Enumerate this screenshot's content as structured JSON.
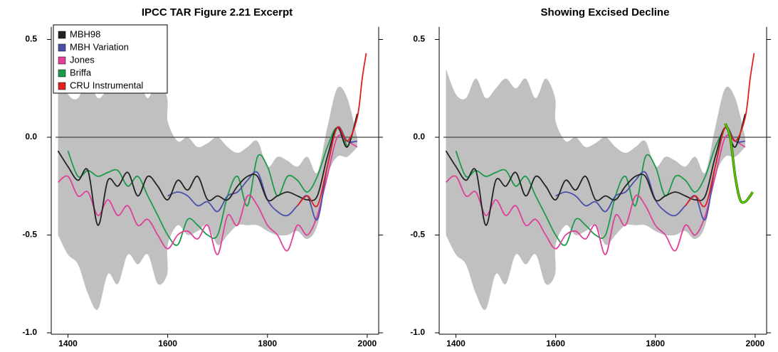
{
  "chart_data": [
    {
      "type": "line",
      "title": "IPCC TAR Figure 2.21 Excerpt",
      "xlim": [
        1375,
        2023
      ],
      "ylim": [
        -1.0,
        0.55
      ],
      "xticks": [
        1400,
        1600,
        1800,
        2000
      ],
      "yticks": [
        {
          "value": -1.0,
          "label": "-1.0"
        },
        {
          "value": -0.5,
          "label": "-0.5"
        },
        {
          "value": 0.0,
          "label": "0.0"
        },
        {
          "value": 0.5,
          "label": "0.5"
        }
      ],
      "reference_line": 0,
      "legend": "upper left",
      "band": {
        "color": "#c0c0c0",
        "x": [
          1380,
          1400,
          1420,
          1440,
          1460,
          1480,
          1500,
          1520,
          1540,
          1560,
          1580,
          1599,
          1600,
          1620,
          1640,
          1660,
          1680,
          1700,
          1720,
          1740,
          1760,
          1780,
          1800,
          1820,
          1840,
          1860,
          1880,
          1900,
          1920,
          1940,
          1960,
          1980
        ],
        "upper": [
          0.35,
          0.22,
          0.2,
          0.3,
          0.2,
          0.25,
          0.3,
          0.25,
          0.3,
          0.2,
          0.3,
          0.2,
          0.08,
          -0.02,
          0.0,
          -0.05,
          -0.03,
          0.0,
          -0.05,
          -0.08,
          -0.05,
          -0.02,
          -0.15,
          -0.1,
          -0.12,
          -0.15,
          -0.1,
          -0.18,
          0.05,
          0.25,
          0.2,
          0.0
        ],
        "lower": [
          -0.5,
          -0.6,
          -0.65,
          -0.8,
          -0.88,
          -0.7,
          -0.75,
          -0.6,
          -0.65,
          -0.6,
          -0.75,
          -0.7,
          -0.55,
          -0.45,
          -0.5,
          -0.48,
          -0.45,
          -0.55,
          -0.5,
          -0.45,
          -0.45,
          -0.45,
          -0.48,
          -0.5,
          -0.5,
          -0.48,
          -0.52,
          -0.45,
          -0.2,
          -0.1,
          -0.1,
          -0.05
        ]
      },
      "series": [
        {
          "name": "Briffa",
          "legend_order": 3,
          "color": "#1a9a4a",
          "x": [
            1400,
            1420,
            1440,
            1460,
            1480,
            1500,
            1520,
            1540,
            1560,
            1580,
            1600,
            1620,
            1640,
            1660,
            1680,
            1700,
            1720,
            1740,
            1760,
            1780,
            1800,
            1820,
            1840,
            1860,
            1880,
            1900,
            1920,
            1940,
            1960
          ],
          "values": [
            -0.07,
            -0.2,
            -0.17,
            -0.2,
            -0.18,
            -0.17,
            -0.25,
            -0.2,
            -0.3,
            -0.4,
            -0.5,
            -0.55,
            -0.42,
            -0.45,
            -0.5,
            -0.5,
            -0.3,
            -0.2,
            -0.35,
            -0.1,
            -0.15,
            -0.3,
            -0.2,
            -0.22,
            -0.28,
            -0.2,
            -0.05,
            0.05,
            -0.05
          ]
        },
        {
          "name": "Jones",
          "legend_order": 2,
          "color": "#e0409a",
          "x": [
            1380,
            1400,
            1420,
            1440,
            1460,
            1480,
            1500,
            1520,
            1540,
            1560,
            1580,
            1600,
            1620,
            1640,
            1660,
            1680,
            1700,
            1720,
            1740,
            1760,
            1780,
            1800,
            1820,
            1840,
            1860,
            1880,
            1900,
            1920,
            1940,
            1960,
            1980
          ],
          "values": [
            -0.23,
            -0.2,
            -0.3,
            -0.28,
            -0.4,
            -0.32,
            -0.4,
            -0.35,
            -0.45,
            -0.42,
            -0.5,
            -0.57,
            -0.5,
            -0.48,
            -0.52,
            -0.45,
            -0.6,
            -0.4,
            -0.45,
            -0.3,
            -0.35,
            -0.45,
            -0.5,
            -0.58,
            -0.45,
            -0.5,
            -0.4,
            -0.2,
            0.0,
            -0.02,
            -0.05
          ]
        },
        {
          "name": "MBH Variation",
          "legend_order": 1,
          "color": "#4a50a8",
          "x": [
            1600,
            1620,
            1640,
            1660,
            1680,
            1700,
            1720,
            1740,
            1760,
            1780,
            1800,
            1820,
            1840,
            1860,
            1880,
            1900,
            1920,
            1940,
            1960,
            1980
          ],
          "values": [
            -0.3,
            -0.28,
            -0.3,
            -0.35,
            -0.33,
            -0.38,
            -0.3,
            -0.28,
            -0.22,
            -0.18,
            -0.32,
            -0.38,
            -0.4,
            -0.35,
            -0.3,
            -0.42,
            -0.15,
            0.05,
            -0.02,
            -0.02
          ]
        },
        {
          "name": "MBH98",
          "legend_order": 0,
          "color": "#222222",
          "x": [
            1380,
            1400,
            1420,
            1440,
            1460,
            1480,
            1500,
            1520,
            1540,
            1560,
            1580,
            1600,
            1620,
            1640,
            1660,
            1680,
            1700,
            1720,
            1740,
            1760,
            1780,
            1800,
            1820,
            1840,
            1860,
            1880,
            1900,
            1920,
            1940,
            1960,
            1980
          ],
          "values": [
            -0.07,
            -0.15,
            -0.22,
            -0.17,
            -0.45,
            -0.22,
            -0.25,
            -0.18,
            -0.3,
            -0.2,
            -0.25,
            -0.32,
            -0.22,
            -0.27,
            -0.2,
            -0.32,
            -0.3,
            -0.32,
            -0.25,
            -0.2,
            -0.2,
            -0.32,
            -0.3,
            -0.28,
            -0.3,
            -0.32,
            -0.3,
            -0.1,
            0.05,
            -0.05,
            0.12
          ]
        },
        {
          "name": "CRU Instrumental",
          "legend_order": 4,
          "color": "#e02020",
          "x": [
            1860,
            1880,
            1900,
            1920,
            1940,
            1960,
            1980,
            1990,
            1998
          ],
          "values": [
            -0.35,
            -0.3,
            -0.35,
            -0.15,
            0.05,
            -0.02,
            0.1,
            0.3,
            0.43
          ]
        }
      ]
    },
    {
      "type": "line",
      "title": "Showing Excised Decline",
      "xlim": [
        1375,
        2023
      ],
      "ylim": [
        -1.0,
        0.55
      ],
      "xticks": [
        1400,
        1600,
        1800,
        2000
      ],
      "yticks": [
        {
          "value": -1.0,
          "label": "-1.0"
        },
        {
          "value": -0.5,
          "label": "-0.5"
        },
        {
          "value": 0.0,
          "label": "0.0"
        },
        {
          "value": 0.5,
          "label": "0.5"
        }
      ],
      "reference_line": 0,
      "band": {
        "color": "#c0c0c0",
        "x": [
          1380,
          1400,
          1420,
          1440,
          1460,
          1480,
          1500,
          1520,
          1540,
          1560,
          1580,
          1599,
          1600,
          1620,
          1640,
          1660,
          1680,
          1700,
          1720,
          1740,
          1760,
          1780,
          1800,
          1820,
          1840,
          1860,
          1880,
          1900,
          1920,
          1940,
          1960,
          1980
        ],
        "upper": [
          0.35,
          0.22,
          0.2,
          0.3,
          0.2,
          0.25,
          0.3,
          0.25,
          0.3,
          0.2,
          0.3,
          0.2,
          0.08,
          -0.02,
          0.0,
          -0.05,
          -0.03,
          0.0,
          -0.05,
          -0.08,
          -0.05,
          -0.02,
          -0.15,
          -0.1,
          -0.12,
          -0.15,
          -0.1,
          -0.18,
          0.05,
          0.25,
          0.2,
          0.0
        ],
        "lower": [
          -0.5,
          -0.6,
          -0.65,
          -0.8,
          -0.88,
          -0.7,
          -0.75,
          -0.6,
          -0.65,
          -0.6,
          -0.75,
          -0.7,
          -0.55,
          -0.45,
          -0.5,
          -0.48,
          -0.45,
          -0.55,
          -0.5,
          -0.45,
          -0.45,
          -0.45,
          -0.48,
          -0.5,
          -0.5,
          -0.48,
          -0.52,
          -0.45,
          -0.2,
          -0.1,
          -0.1,
          -0.05
        ]
      },
      "series": [
        {
          "color": "#1a9a4a",
          "x": [
            1400,
            1420,
            1440,
            1460,
            1480,
            1500,
            1520,
            1540,
            1560,
            1580,
            1600,
            1620,
            1640,
            1660,
            1680,
            1700,
            1720,
            1740,
            1760,
            1780,
            1800,
            1820,
            1840,
            1860,
            1880,
            1900,
            1920,
            1940
          ],
          "values": [
            -0.07,
            -0.2,
            -0.17,
            -0.2,
            -0.18,
            -0.17,
            -0.25,
            -0.2,
            -0.3,
            -0.4,
            -0.5,
            -0.55,
            -0.42,
            -0.45,
            -0.5,
            -0.5,
            -0.3,
            -0.2,
            -0.35,
            -0.1,
            -0.15,
            -0.3,
            -0.2,
            -0.22,
            -0.28,
            -0.2,
            -0.05,
            0.05
          ]
        },
        {
          "color": "#e0409a",
          "x": [
            1380,
            1400,
            1420,
            1440,
            1460,
            1480,
            1500,
            1520,
            1540,
            1560,
            1580,
            1600,
            1620,
            1640,
            1660,
            1680,
            1700,
            1720,
            1740,
            1760,
            1780,
            1800,
            1820,
            1840,
            1860,
            1880,
            1900,
            1920,
            1940,
            1960,
            1980
          ],
          "values": [
            -0.23,
            -0.2,
            -0.3,
            -0.28,
            -0.4,
            -0.32,
            -0.4,
            -0.35,
            -0.45,
            -0.42,
            -0.5,
            -0.57,
            -0.5,
            -0.48,
            -0.52,
            -0.45,
            -0.6,
            -0.4,
            -0.45,
            -0.3,
            -0.35,
            -0.45,
            -0.5,
            -0.58,
            -0.45,
            -0.5,
            -0.4,
            -0.2,
            0.0,
            -0.02,
            -0.05
          ]
        },
        {
          "color": "#4a50a8",
          "x": [
            1600,
            1620,
            1640,
            1660,
            1680,
            1700,
            1720,
            1740,
            1760,
            1780,
            1800,
            1820,
            1840,
            1860,
            1880,
            1900,
            1920,
            1940,
            1960,
            1980
          ],
          "values": [
            -0.3,
            -0.28,
            -0.3,
            -0.35,
            -0.33,
            -0.38,
            -0.3,
            -0.28,
            -0.22,
            -0.18,
            -0.32,
            -0.38,
            -0.4,
            -0.35,
            -0.3,
            -0.42,
            -0.15,
            0.05,
            -0.02,
            -0.02
          ]
        },
        {
          "color": "#222222",
          "x": [
            1380,
            1400,
            1420,
            1440,
            1460,
            1480,
            1500,
            1520,
            1540,
            1560,
            1580,
            1600,
            1620,
            1640,
            1660,
            1680,
            1700,
            1720,
            1740,
            1760,
            1780,
            1800,
            1820,
            1840,
            1860,
            1880,
            1900,
            1920,
            1940,
            1960,
            1980
          ],
          "values": [
            -0.07,
            -0.15,
            -0.22,
            -0.17,
            -0.45,
            -0.22,
            -0.25,
            -0.18,
            -0.3,
            -0.2,
            -0.25,
            -0.32,
            -0.22,
            -0.27,
            -0.2,
            -0.32,
            -0.3,
            -0.32,
            -0.25,
            -0.2,
            -0.2,
            -0.32,
            -0.3,
            -0.28,
            -0.3,
            -0.32,
            -0.3,
            -0.1,
            0.05,
            -0.05,
            0.12
          ]
        },
        {
          "color": "#e02020",
          "x": [
            1860,
            1880,
            1900,
            1920,
            1940,
            1960,
            1980,
            1990,
            1998
          ],
          "values": [
            -0.35,
            -0.3,
            -0.35,
            -0.15,
            0.05,
            -0.02,
            0.1,
            0.3,
            0.43
          ]
        },
        {
          "color": "#66cc00",
          "x": [
            1940,
            1950,
            1960,
            1970,
            1980,
            1990,
            1995
          ],
          "values": [
            0.07,
            0.0,
            -0.2,
            -0.32,
            -0.33,
            -0.3,
            -0.28
          ]
        }
      ]
    }
  ]
}
